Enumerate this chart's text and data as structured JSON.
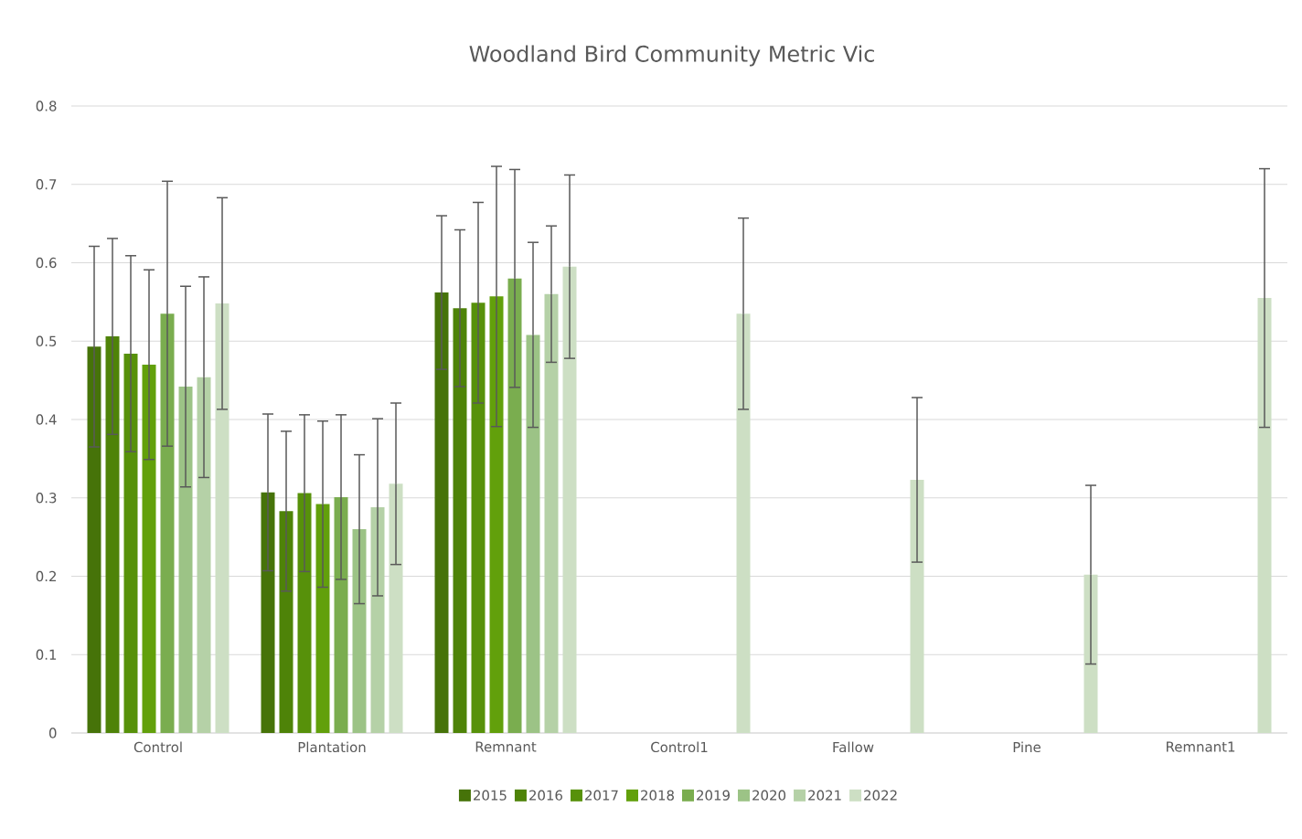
{
  "chart_data": {
    "type": "bar",
    "title": "Woodland Bird Community Metric Vic",
    "categories": [
      "Control",
      "Plantation",
      "Remnant",
      "Control1",
      "Fallow",
      "Pine",
      "Remnant1"
    ],
    "series": [
      {
        "name": "2015",
        "color": "#467309",
        "values": [
          0.493,
          0.307,
          0.562,
          null,
          null,
          null,
          null
        ],
        "errors": [
          0.128,
          0.1,
          0.098,
          null,
          null,
          null,
          null
        ]
      },
      {
        "name": "2016",
        "color": "#4e8308",
        "values": [
          0.506,
          0.283,
          0.542,
          null,
          null,
          null,
          null
        ],
        "errors": [
          0.125,
          0.102,
          0.1,
          null,
          null,
          null,
          null
        ]
      },
      {
        "name": "2017",
        "color": "#57910a",
        "values": [
          0.484,
          0.306,
          0.549,
          null,
          null,
          null,
          null
        ],
        "errors": [
          0.125,
          0.1,
          0.128,
          null,
          null,
          null,
          null
        ]
      },
      {
        "name": "2018",
        "color": "#62a00b",
        "values": [
          0.47,
          0.292,
          0.557,
          null,
          null,
          null,
          null
        ],
        "errors": [
          0.121,
          0.106,
          0.166,
          null,
          null,
          null,
          null
        ]
      },
      {
        "name": "2019",
        "color": "#7aad4f",
        "values": [
          0.535,
          0.301,
          0.58,
          null,
          null,
          null,
          null
        ],
        "errors": [
          0.169,
          0.105,
          0.139,
          null,
          null,
          null,
          null
        ]
      },
      {
        "name": "2020",
        "color": "#9cc386",
        "values": [
          0.442,
          0.26,
          0.508,
          null,
          null,
          null,
          null
        ],
        "errors": [
          0.128,
          0.095,
          0.118,
          null,
          null,
          null,
          null
        ]
      },
      {
        "name": "2021",
        "color": "#b5d1a7",
        "values": [
          0.454,
          0.288,
          0.56,
          null,
          null,
          null,
          null
        ],
        "errors": [
          0.128,
          0.113,
          0.087,
          null,
          null,
          null,
          null
        ]
      },
      {
        "name": "2022",
        "color": "#cddfc4",
        "values": [
          0.548,
          0.318,
          0.595,
          0.535,
          0.323,
          0.202,
          0.555
        ],
        "errors": [
          0.135,
          0.103,
          0.117,
          0.122,
          0.105,
          0.114,
          0.165
        ]
      }
    ],
    "ylim": [
      0,
      0.8
    ],
    "yticks": [
      0,
      0.1,
      0.2,
      0.3,
      0.4,
      0.5,
      0.6,
      0.7,
      0.8
    ],
    "grid": "y",
    "legend": "bottom"
  }
}
